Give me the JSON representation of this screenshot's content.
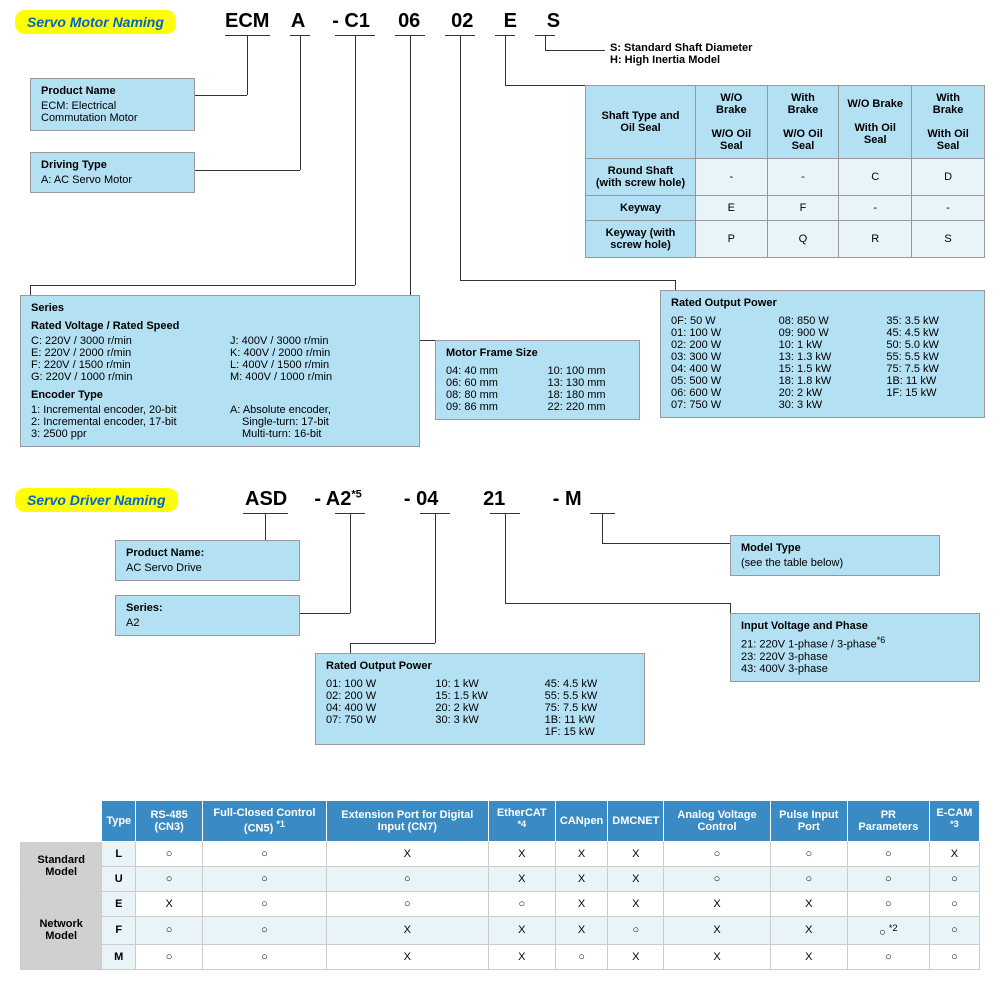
{
  "motor": {
    "header": "Servo Motor Naming",
    "code": {
      "p1": "ECM",
      "p2": "A",
      "p3": "- C1",
      "p4": "06",
      "p5": "02",
      "p6": "E",
      "p7": "S"
    },
    "shaftNote": {
      "l1": "S: Standard Shaft Diameter",
      "l2": "H: High Inertia Model"
    },
    "productName": {
      "title": "Product Name",
      "text": "ECM: Electrical Commutation Motor"
    },
    "drivingType": {
      "title": "Driving Type",
      "text": "A: AC Servo Motor"
    },
    "series": {
      "title": "Series",
      "sub1": "Rated Voltage /  Rated Speed",
      "c": "C: 220V / 3000 r/min",
      "e": "E: 220V / 2000 r/min",
      "f": "F: 220V / 1500 r/min",
      "g": "G: 220V / 1000 r/min",
      "j": "J: 400V / 3000 r/min",
      "k": "K: 400V / 2000 r/min",
      "l": "L: 400V / 1500 r/min",
      "m": "M: 400V / 1000 r/min",
      "sub2": "Encoder Type",
      "e1": "1: Incremental encoder, 20-bit",
      "e2": "2: Incremental encoder, 17-bit",
      "e3": "3: 2500 ppr",
      "ea1": "A: Absolute encoder,",
      "ea2": "Single-turn: 17-bit",
      "ea3": "Multi-turn: 16-bit"
    },
    "frame": {
      "title": "Motor Frame Size",
      "a1": "04: 40 mm",
      "a2": "06: 60 mm",
      "a3": "08: 80 mm",
      "a4": "09: 86 mm",
      "b1": "10: 100 mm",
      "b2": "13: 130 mm",
      "b3": "18: 180 mm",
      "b4": "22: 220 mm"
    },
    "shaftTable": {
      "h1": "Shaft Type and Oil Seal",
      "c1a": "W/O Brake",
      "c1b": "W/O Oil Seal",
      "c2a": "With Brake",
      "c2b": "W/O Oil Seal",
      "c3a": "W/O Brake",
      "c3b": "With Oil Seal",
      "c4a": "With Brake",
      "c4b": "With Oil Seal",
      "r1": "Round Shaft (with screw hole)",
      "r1v": [
        "-",
        "-",
        "C",
        "D"
      ],
      "r2": "Keyway",
      "r2v": [
        "E",
        "F",
        "-",
        "-"
      ],
      "r3": "Keyway (with screw hole)",
      "r3v": [
        "P",
        "Q",
        "R",
        "S"
      ]
    },
    "power": {
      "title": "Rated Output Power",
      "a": [
        "0F: 50 W",
        "01: 100 W",
        "02: 200 W",
        "03: 300 W",
        "04: 400 W",
        "05: 500 W",
        "06: 600 W",
        "07: 750 W"
      ],
      "b": [
        "08: 850 W",
        "09: 900 W",
        "10: 1 kW",
        "13: 1.3 kW",
        "15: 1.5 kW",
        "18: 1.8 kW",
        "20: 2 kW",
        "30: 3 kW"
      ],
      "c": [
        "35: 3.5 kW",
        "45: 4.5 kW",
        "50: 5.0 kW",
        "55: 5.5 kW",
        "75: 7.5 kW",
        "1B: 11 kW",
        "1F: 15 kW"
      ]
    }
  },
  "driver": {
    "header": "Servo Driver Naming",
    "code": {
      "p1": "ASD",
      "p2": "-   A2",
      "sup": "*5",
      "p3": "-   04",
      "p4": "21",
      "p5": "-    M"
    },
    "productName": {
      "title": "Product Name:",
      "text": "AC Servo Drive"
    },
    "series": {
      "title": "Series:",
      "text": "A2"
    },
    "modelType": {
      "title": "Model Type",
      "text": "(see the table below)"
    },
    "voltage": {
      "title": "Input Voltage and Phase",
      "l1": "21: 220V 1-phase / 3-phase",
      "sup": "*6",
      "l2": "23: 220V 3-phase",
      "l3": "43: 400V 3-phase"
    },
    "power": {
      "title": "Rated Output Power",
      "a": [
        "01: 100 W",
        "02: 200 W",
        "04: 400 W",
        "07: 750 W"
      ],
      "b": [
        "10: 1 kW",
        "15: 1.5 kW",
        "20: 2 kW",
        "30: 3 kW"
      ],
      "c": [
        "45: 4.5 kW",
        "55: 5.5 kW",
        "75: 7.5 kW",
        "1B: 11 kW",
        "1F: 15 kW"
      ]
    }
  },
  "modelTable": {
    "headers": [
      "",
      "Type",
      "RS-485 (CN3)",
      "Full-Closed Control (CN5) *1",
      "Extension Port for Digital Input (CN7)",
      "EtherCAT *4",
      "CANpen",
      "DMCNET",
      "Analog Voltage Control",
      "Pulse Input Port",
      "PR Parameters",
      "E-CAM *3"
    ],
    "groups": [
      {
        "name": "Standard Model",
        "rows": [
          {
            "t": "L",
            "v": [
              "○",
              "○",
              "X",
              "X",
              "X",
              "X",
              "○",
              "○",
              "○",
              "X"
            ]
          },
          {
            "t": "U",
            "v": [
              "○",
              "○",
              "○",
              "X",
              "X",
              "X",
              "○",
              "○",
              "○",
              "○"
            ]
          }
        ]
      },
      {
        "name": "Network Model",
        "rows": [
          {
            "t": "E",
            "v": [
              "X",
              "○",
              "○",
              "○",
              "X",
              "X",
              "X",
              "X",
              "○",
              "○"
            ]
          },
          {
            "t": "F",
            "v": [
              "○",
              "○",
              "X",
              "X",
              "X",
              "○",
              "X",
              "X",
              "○ *2",
              "○"
            ]
          },
          {
            "t": "M",
            "v": [
              "○",
              "○",
              "X",
              "X",
              "○",
              "X",
              "X",
              "X",
              "○",
              "○"
            ]
          }
        ]
      }
    ]
  }
}
